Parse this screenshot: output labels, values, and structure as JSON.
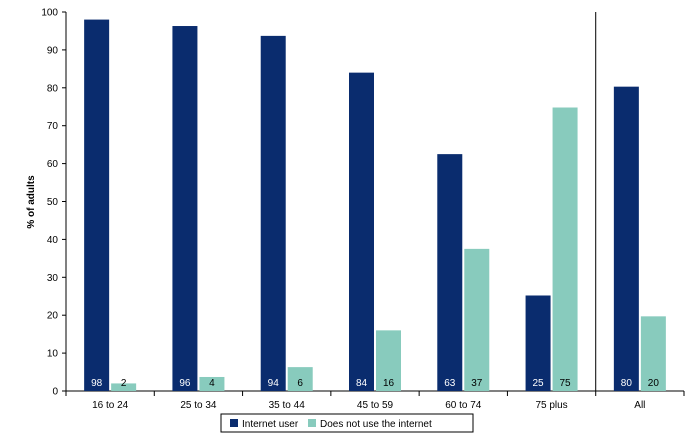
{
  "chart_data": {
    "type": "bar",
    "ylabel": "% of adults",
    "ylim": [
      0,
      100
    ],
    "yticks": [
      0,
      10,
      20,
      30,
      40,
      50,
      60,
      70,
      80,
      90,
      100
    ],
    "categories": [
      "16 to 24",
      "25 to 34",
      "35 to 44",
      "45 to 59",
      "60 to 74",
      "75 plus",
      "All"
    ],
    "series": [
      {
        "name": "Internet user",
        "color": "#0a2c6e",
        "values": [
          98,
          96.3,
          93.7,
          84,
          62.5,
          25.2,
          80.3
        ],
        "labels": [
          "98",
          "96",
          "94",
          "84",
          "63",
          "25",
          "80"
        ]
      },
      {
        "name": "Does not use the internet",
        "color": "#88cbbd",
        "values": [
          2,
          3.7,
          6.3,
          16,
          37.5,
          74.8,
          19.7
        ],
        "labels": [
          "2",
          "4",
          "6",
          "16",
          "37",
          "75",
          "20"
        ]
      }
    ],
    "separator_before_category": "All",
    "grid": false,
    "legend_position": "bottom"
  }
}
